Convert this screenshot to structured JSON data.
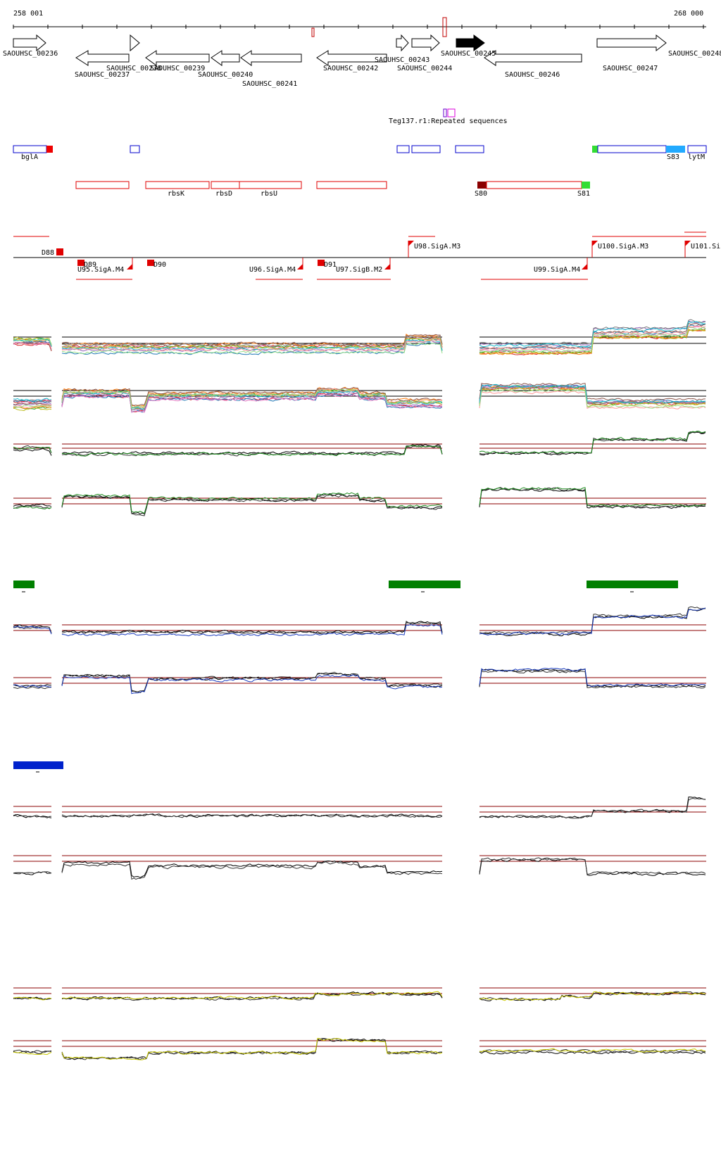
{
  "axis": {
    "start_label": "258 001",
    "end_label": "268 000"
  },
  "genes": [
    {
      "label": "SAOUHSC_00236"
    },
    {
      "label": "SAOUHSC_00237"
    },
    {
      "label": "SAOUHSC_00238"
    },
    {
      "label": "SAOUHSC_00239"
    },
    {
      "label": "SAOUHSC_00240"
    },
    {
      "label": "SAOUHSC_00241"
    },
    {
      "label": "SAOUHSC_00242"
    },
    {
      "label": "SAOUHSC_00243"
    },
    {
      "label": "SAOUHSC_00244"
    },
    {
      "label": "SAOUHSC_00245"
    },
    {
      "label": "SAOUHSC_00246"
    },
    {
      "label": "SAOUHSC_00247"
    },
    {
      "label": "SAOUHSC_00248"
    }
  ],
  "repeat_label": "Teg137.r1:Repeated sequences",
  "blue_features": [
    {
      "label": "bglA"
    },
    {
      "label": "S83"
    },
    {
      "label": "lytM"
    }
  ],
  "red_features": [
    {
      "label": "rbsK"
    },
    {
      "label": "rbsD"
    },
    {
      "label": "rbsU"
    },
    {
      "label": "S80"
    },
    {
      "label": "S81"
    }
  ],
  "regulatory": [
    {
      "label": "D88"
    },
    {
      "label": "D89"
    },
    {
      "label": "U95.SigA.M4"
    },
    {
      "label": "D90"
    },
    {
      "label": "U96.SigA.M4"
    },
    {
      "label": "D91"
    },
    {
      "label": "U97.SigB.M2"
    },
    {
      "label": "U98.SigA.M3"
    },
    {
      "label": "U99.SigA.M4"
    },
    {
      "label": "U100.SigA.M3"
    },
    {
      "label": "U101.Si"
    }
  ],
  "colors": {
    "gene_outline": "#000000",
    "red_feature": "#e00000",
    "blue_feature": "#0000cc",
    "green_block": "#008000",
    "blue_block": "#0022cc",
    "threshold": "#8b0000",
    "track_green": "#1e8c1e",
    "track_blue": "#1a3cbf",
    "track_red": "#c41414",
    "track_yellow": "#cccc00"
  }
}
